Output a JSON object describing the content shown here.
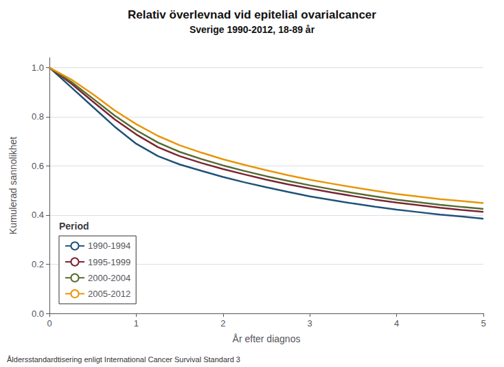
{
  "chart_data": {
    "type": "line",
    "title": "Relativ överlevnad vid epitelial ovarialcancer",
    "subtitle": "Sverige 1990-2012, 18-89 år",
    "xlabel": "År efter diagnos",
    "ylabel": "Kumulerad sannolikhet",
    "footnote": "Åldersstandardtisering enligt International Cancer Survival Standard 3",
    "legend_title": "Period",
    "legend": "lower left",
    "grid": true,
    "xlim": [
      0,
      5
    ],
    "ylim": [
      0.0,
      1.04
    ],
    "xticks": [
      0,
      1,
      2,
      3,
      4,
      5
    ],
    "yticks": [
      {
        "value": 0.0,
        "label": "0.0"
      },
      0.2,
      0.4,
      0.6,
      0.8,
      {
        "value": 1.0,
        "label": "1.0"
      }
    ],
    "x": [
      0.0,
      0.25,
      0.5,
      0.75,
      1.0,
      1.25,
      1.5,
      1.75,
      2.0,
      2.25,
      2.5,
      2.75,
      3.0,
      3.25,
      3.5,
      3.75,
      4.0,
      4.25,
      4.5,
      4.75,
      5.0
    ],
    "series": [
      {
        "name": "1990-1994",
        "color": "#1f527a",
        "values": [
          1.0,
          0.92,
          0.84,
          0.76,
          0.69,
          0.64,
          0.606,
          0.58,
          0.555,
          0.533,
          0.513,
          0.494,
          0.476,
          0.461,
          0.447,
          0.434,
          0.422,
          0.412,
          0.402,
          0.394,
          0.385
        ]
      },
      {
        "name": "1995-1999",
        "color": "#7b2533",
        "values": [
          1.0,
          0.935,
          0.862,
          0.79,
          0.728,
          0.676,
          0.64,
          0.612,
          0.587,
          0.565,
          0.544,
          0.525,
          0.508,
          0.492,
          0.477,
          0.463,
          0.451,
          0.44,
          0.43,
          0.421,
          0.413
        ]
      },
      {
        "name": "2000-2004",
        "color": "#556b2f",
        "values": [
          1.0,
          0.942,
          0.874,
          0.805,
          0.745,
          0.695,
          0.657,
          0.628,
          0.602,
          0.579,
          0.558,
          0.539,
          0.521,
          0.505,
          0.49,
          0.476,
          0.463,
          0.452,
          0.442,
          0.433,
          0.425
        ]
      },
      {
        "name": "2005-2012",
        "color": "#e8950a",
        "values": [
          1.0,
          0.952,
          0.892,
          0.826,
          0.77,
          0.722,
          0.684,
          0.654,
          0.627,
          0.604,
          0.582,
          0.562,
          0.544,
          0.528,
          0.513,
          0.499,
          0.486,
          0.475,
          0.465,
          0.457,
          0.449
        ]
      }
    ]
  }
}
